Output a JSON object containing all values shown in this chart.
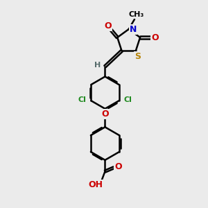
{
  "bg_color": "#ebebeb",
  "bond_color": "#000000",
  "bond_width": 1.8,
  "dbo": 0.06,
  "figsize": [
    3.0,
    3.0
  ],
  "dpi": 100,
  "atoms": {
    "S": {
      "color": "#b8860b"
    },
    "N": {
      "color": "#0000cc"
    },
    "O": {
      "color": "#cc0000"
    },
    "Cl": {
      "color": "#228B22"
    },
    "C": {
      "color": "#000000"
    },
    "H": {
      "color": "#556b6b"
    }
  },
  "fontsize": 9
}
